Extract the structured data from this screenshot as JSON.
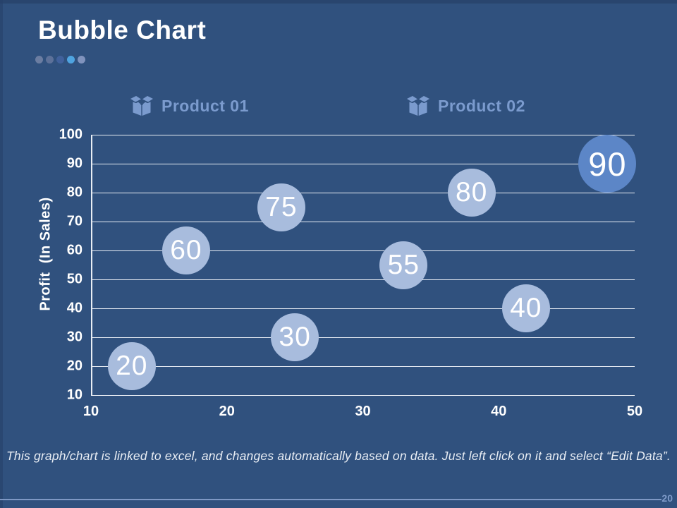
{
  "slide": {
    "title": "Bubble Chart",
    "page_number": "20",
    "footer_note": "This graph/chart is linked to excel, and changes automatically based on data. Just left click on it and select “Edit Data”.",
    "accent_dots": [
      "#6b7da1",
      "#5d7199",
      "#41619c",
      "#4fa4e0",
      "#8093bd"
    ],
    "colors": {
      "background": "#30517e",
      "edge": "#274169",
      "grid_line": "#e8edf4",
      "axis_text": "#ffffff",
      "legend_text": "#7b9bce",
      "footer_text": "#e8edf4",
      "page_line": "#7e98c4",
      "page_number": "#7f9bc9"
    }
  },
  "legend": {
    "items": [
      {
        "label": "Product 01",
        "icon": "open-box-icon"
      },
      {
        "label": "Product 02",
        "icon": "open-box-icon"
      }
    ]
  },
  "chart_data": {
    "type": "scatter",
    "subtype": "bubble",
    "title": "",
    "xlabel": "",
    "ylabel": "Profit  (In Sales)",
    "xlim": [
      10,
      50
    ],
    "ylim": [
      10,
      100
    ],
    "x_ticks": [
      10,
      20,
      30,
      40,
      50
    ],
    "y_ticks": [
      100,
      90,
      80,
      70,
      60,
      50,
      40,
      30,
      20,
      10
    ],
    "grid": "horizontal",
    "legend_position": "top",
    "series": [
      {
        "name": "Product 01",
        "color": "#a8bcdd",
        "points": [
          {
            "x": 13,
            "y": 20,
            "label": "20",
            "r": 34
          },
          {
            "x": 17,
            "y": 60,
            "label": "60",
            "r": 34
          },
          {
            "x": 24,
            "y": 75,
            "label": "75",
            "r": 34
          },
          {
            "x": 25,
            "y": 30,
            "label": "30",
            "r": 34
          },
          {
            "x": 33,
            "y": 55,
            "label": "55",
            "r": 34
          },
          {
            "x": 38,
            "y": 80,
            "label": "80",
            "r": 34
          },
          {
            "x": 42,
            "y": 40,
            "label": "40",
            "r": 34
          }
        ]
      },
      {
        "name": "Product 02",
        "color": "#5c86c7",
        "points": [
          {
            "x": 48,
            "y": 90,
            "label": "90",
            "r": 41
          }
        ]
      }
    ]
  }
}
